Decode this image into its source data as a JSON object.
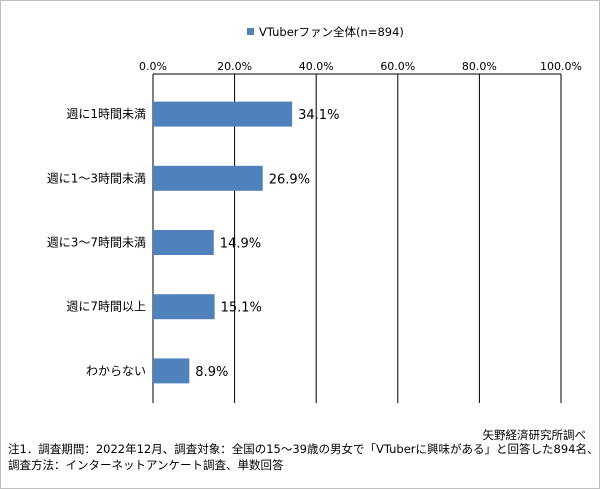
{
  "chart_data": {
    "type": "bar",
    "orientation": "horizontal",
    "categories": [
      "週に1時間未満",
      "週に1～3時間未満",
      "週に3～7時間未満",
      "週に7時間以上",
      "わからない"
    ],
    "series": [
      {
        "name": "VTuberファン全体(n=894)",
        "values": [
          34.1,
          26.9,
          14.9,
          15.1,
          8.9
        ],
        "color": "#4f81bd"
      }
    ],
    "value_labels": [
      "34.1%",
      "26.9%",
      "14.9%",
      "15.1%",
      "8.9%"
    ],
    "xlim": [
      0,
      100
    ],
    "ticks": [
      0,
      20,
      40,
      60,
      80,
      100
    ],
    "tick_labels": [
      "0.0%",
      "20.0%",
      "40.0%",
      "60.0%",
      "80.0%",
      "100.0%"
    ],
    "axis_position": "top",
    "grid": true,
    "legend_placement": "top-center",
    "title": "",
    "xlabel": "",
    "ylabel": ""
  },
  "source": "矢野経済研究所調べ",
  "notes": [
    "注1．調査期間：2022年12月、調査対象：全国の15～39歳の男女で「VTuberに興味がある」と回答した894名、",
    "調査方法：インターネットアンケート調査、単数回答"
  ]
}
